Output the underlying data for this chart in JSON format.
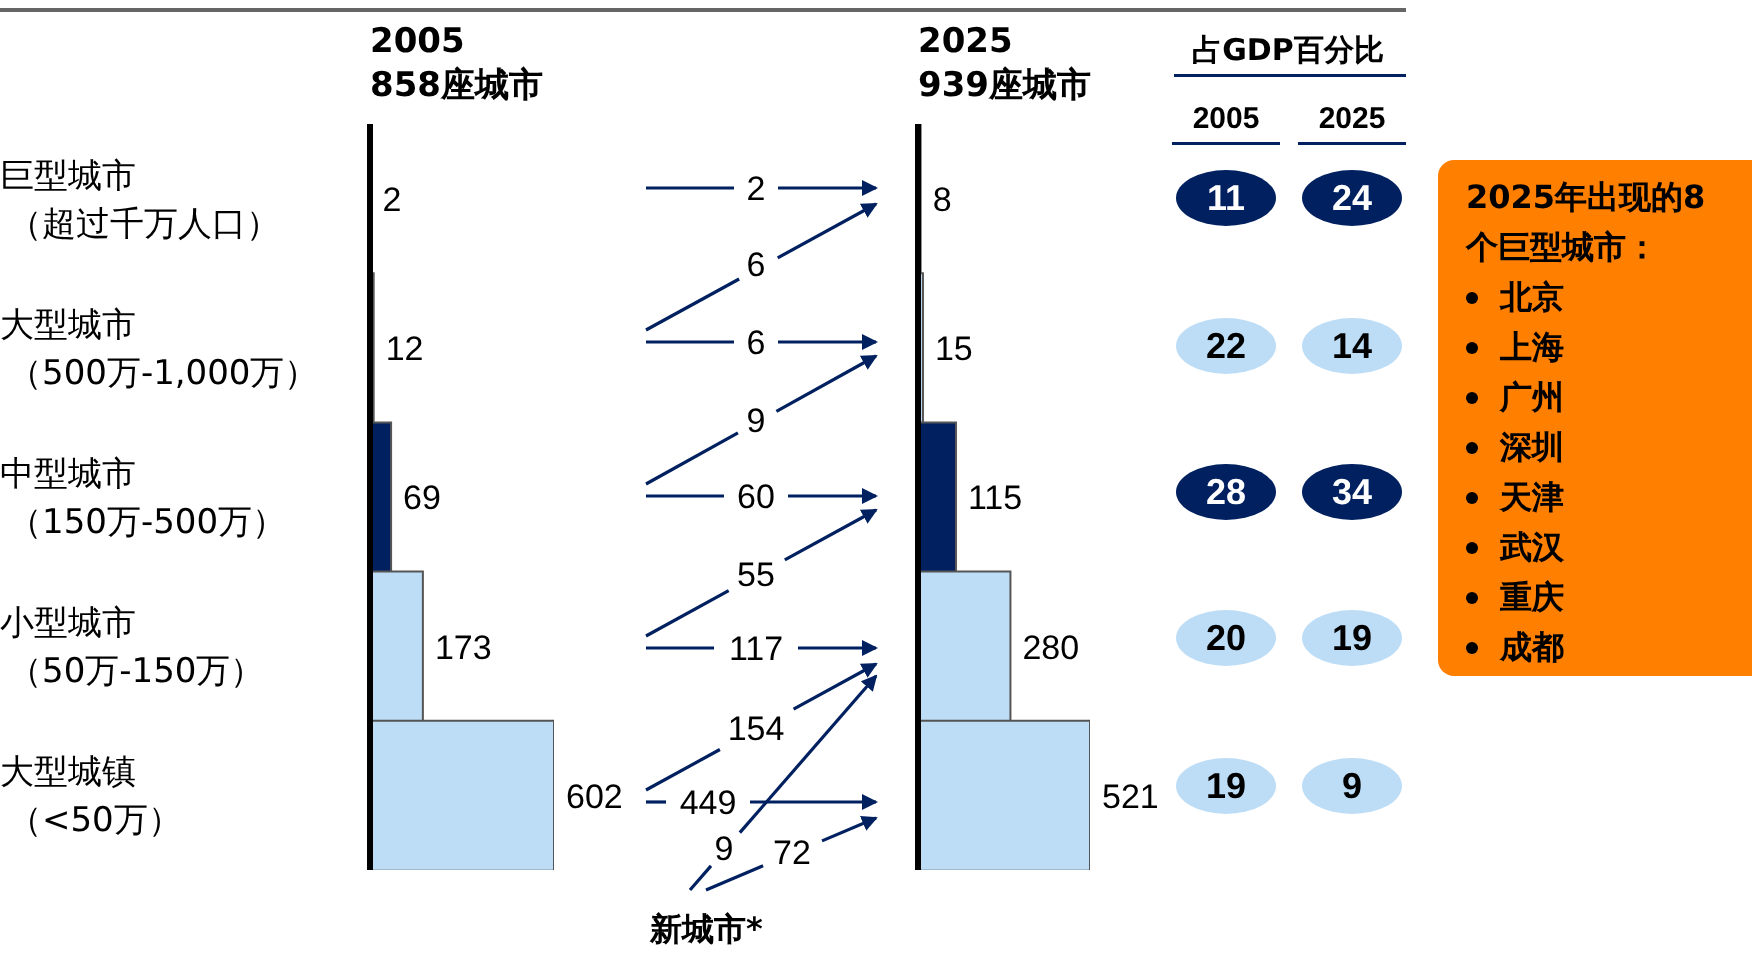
{
  "chart_data": [
    {
      "type": "bar",
      "orientation": "horizontal",
      "title": "2005\n858座城市",
      "categories": [
        "巨型城市（超过千万人口）",
        "大型城市（500万-1,000万）",
        "中型城市（150万-500万）",
        "小型城市（50万-150万）",
        "大型城镇（<50万）"
      ],
      "values": [
        2,
        12,
        69,
        173,
        602
      ],
      "colors": [
        "#bdddf7",
        "#bdddf7",
        "#002060",
        "#bdddf7",
        "#bdddf7"
      ],
      "tick_labels": "y",
      "data_labels": true
    },
    {
      "type": "bar",
      "orientation": "horizontal",
      "title": "2025\n939座城市",
      "values": [
        8,
        15,
        115,
        280,
        521
      ],
      "colors": [
        "#bdddf7",
        "#bdddf7",
        "#002060",
        "#bdddf7",
        "#bdddf7"
      ],
      "tick_labels": false,
      "data_labels": true
    },
    {
      "type": "other",
      "annotations": [
        "2",
        "6",
        "6",
        "9",
        "60",
        "55",
        "117",
        "154",
        "449",
        "9",
        "72",
        "新城市*"
      ]
    },
    {
      "type": "heatmap",
      "title": "占GDP百分比",
      "categories": [
        "2005",
        "2025"
      ],
      "y_categories": [
        null,
        null,
        null,
        null,
        null
      ],
      "cells": [
        [
          11,
          24
        ],
        [
          22,
          14
        ],
        [
          28,
          34
        ],
        [
          20,
          19
        ],
        [
          19,
          9
        ]
      ],
      "colors": [
        [
          "#002060",
          "#002060"
        ],
        [
          "#bdddf7",
          "#bdddf7"
        ],
        [
          "#002060",
          "#002060"
        ],
        [
          "#bdddf7",
          "#bdddf7"
        ],
        [
          "#bdddf7",
          "#bdddf7"
        ]
      ],
      "data_labels": true
    },
    {
      "type": "other",
      "title": "2025年出现的8个巨型城市：",
      "annotations": [
        "北京",
        "上海",
        "广州",
        "深圳",
        "天津",
        "武汉",
        "重庆",
        "成都"
      ]
    }
  ]
}
